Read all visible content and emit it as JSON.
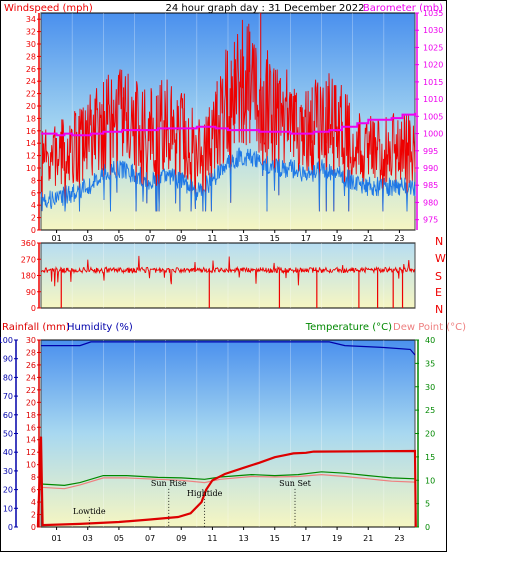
{
  "header": {
    "left_label": "Windspeed (mph)",
    "center_label": "24 hour graph day : 31 December 2022",
    "right_label": "Barometer (mb)"
  },
  "colors": {
    "wind_gust": "#ee0000",
    "wind_avg": "#1e78e6",
    "barometer": "#ee00ee",
    "humidity": "#0000aa",
    "rainfall": "#dd0000",
    "temperature": "#008800",
    "dew_point": "#ee8080",
    "frame": "#000000"
  },
  "chart_data": [
    {
      "type": "line",
      "name": "wind-barometer",
      "left_axis": {
        "label": "Windspeed (mph)",
        "ylim": [
          0,
          35
        ],
        "ticks": [
          0,
          2,
          4,
          6,
          8,
          10,
          12,
          14,
          16,
          18,
          20,
          22,
          24,
          26,
          28,
          30,
          32,
          34
        ]
      },
      "right_axis": {
        "label": "Barometer (mb)",
        "ylim": [
          972,
          1035
        ],
        "ticks": [
          975,
          980,
          985,
          990,
          995,
          1000,
          1005,
          1010,
          1015,
          1020,
          1025,
          1030,
          1035
        ]
      },
      "x_ticks": [
        "01",
        "03",
        "05",
        "07",
        "09",
        "11",
        "13",
        "15",
        "17",
        "19",
        "21",
        "23"
      ],
      "barometer_steps": [
        [
          0,
          1000
        ],
        [
          1.0,
          999.5
        ],
        [
          1.5,
          1000
        ],
        [
          2.0,
          999.5
        ],
        [
          3.2,
          1000
        ],
        [
          4.0,
          1000.5
        ],
        [
          5.2,
          1001
        ],
        [
          7.5,
          1001.5
        ],
        [
          10.0,
          1002
        ],
        [
          11.2,
          1001.5
        ],
        [
          12.0,
          1001
        ],
        [
          14.0,
          1000.5
        ],
        [
          16.0,
          1000
        ],
        [
          17.5,
          1000.5
        ],
        [
          18.5,
          1001
        ],
        [
          19.3,
          1002
        ],
        [
          20.3,
          1003
        ],
        [
          21.0,
          1004
        ],
        [
          22.5,
          1004.5
        ],
        [
          23.2,
          1005.5
        ],
        [
          24.0,
          1006
        ]
      ],
      "wind_profile": [
        [
          0,
          5,
          11
        ],
        [
          1,
          5,
          12
        ],
        [
          2,
          6,
          13
        ],
        [
          3,
          7,
          15
        ],
        [
          4,
          9,
          17
        ],
        [
          5,
          10,
          18
        ],
        [
          6,
          9,
          17
        ],
        [
          7,
          8,
          16
        ],
        [
          8,
          9,
          17
        ],
        [
          9,
          8,
          16
        ],
        [
          10,
          6,
          13
        ],
        [
          11,
          8,
          15
        ],
        [
          12,
          11,
          21
        ],
        [
          13,
          12,
          24
        ],
        [
          14,
          11,
          22
        ],
        [
          15,
          10,
          19
        ],
        [
          16,
          10,
          18
        ],
        [
          17,
          9,
          16
        ],
        [
          18,
          10,
          18
        ],
        [
          19,
          9,
          17
        ],
        [
          20,
          8,
          14
        ],
        [
          21,
          7,
          13
        ],
        [
          22,
          7,
          13
        ],
        [
          23,
          7,
          13
        ],
        [
          24,
          7,
          14
        ]
      ],
      "wind_spikes": [
        [
          12.4,
          26
        ],
        [
          13.4,
          32
        ],
        [
          14.1,
          35
        ],
        [
          13.0,
          28
        ],
        [
          11.3,
          24
        ],
        [
          5.3,
          23
        ],
        [
          17.4,
          23
        ],
        [
          18.3,
          24
        ],
        [
          9.2,
          22
        ]
      ]
    },
    {
      "type": "line",
      "name": "wind-direction",
      "y_ticks": [
        0,
        90,
        180,
        270,
        360
      ],
      "ylim": [
        0,
        360
      ],
      "compass_labels": [
        "N",
        "W",
        "S",
        "E",
        "N"
      ],
      "typical_direction": 210,
      "drops": [
        1.3,
        10.8,
        15.3,
        17.7,
        20.4,
        21.6,
        22.6,
        23.2
      ]
    },
    {
      "type": "line",
      "name": "rain-humidity-temperature",
      "labels": {
        "rainfall": "Rainfall (mm)",
        "humidity": "Humidity (%)",
        "temperature": "Temperature (°C)",
        "dew_point": "Dew Point (°C)"
      },
      "humidity_axis": {
        "ylim": [
          0,
          100
        ],
        "ticks": [
          0,
          10,
          20,
          30,
          40,
          50,
          60,
          70,
          80,
          90,
          100
        ]
      },
      "rain_axis": {
        "ylim": [
          0,
          30
        ],
        "ticks": [
          0,
          2,
          4,
          6,
          8,
          10,
          12,
          14,
          16,
          18,
          20,
          22,
          24,
          26,
          28,
          30
        ]
      },
      "temp_axis": {
        "ylim": [
          0,
          40
        ],
        "ticks": [
          0,
          5,
          10,
          15,
          20,
          25,
          30,
          35,
          40
        ]
      },
      "humidity": [
        [
          0,
          97
        ],
        [
          2.5,
          97
        ],
        [
          3.2,
          99
        ],
        [
          18.5,
          99
        ],
        [
          19.5,
          97
        ],
        [
          22.0,
          96
        ],
        [
          23.7,
          95
        ],
        [
          24.0,
          92
        ]
      ],
      "rainfall": [
        [
          -0.2,
          0
        ],
        [
          0,
          14.5
        ],
        [
          0.1,
          0.3
        ],
        [
          2.5,
          0.5
        ],
        [
          5.0,
          0.8
        ],
        [
          7.0,
          1.2
        ],
        [
          8.8,
          1.6
        ],
        [
          9.6,
          2.2
        ],
        [
          10.3,
          4.0
        ],
        [
          10.6,
          6.0
        ],
        [
          11.0,
          7.5
        ],
        [
          11.8,
          8.5
        ],
        [
          13.0,
          9.5
        ],
        [
          14.0,
          10.3
        ],
        [
          15.0,
          11.2
        ],
        [
          15.8,
          11.6
        ],
        [
          16.2,
          11.8
        ],
        [
          17.0,
          11.9
        ],
        [
          17.5,
          12.1
        ],
        [
          24.0,
          12.2
        ],
        [
          24.05,
          0
        ]
      ],
      "temperature": [
        [
          0,
          9.2
        ],
        [
          1.5,
          8.9
        ],
        [
          2.5,
          9.5
        ],
        [
          4.0,
          11.0
        ],
        [
          5.5,
          11.0
        ],
        [
          7.5,
          10.6
        ],
        [
          9.0,
          10.5
        ],
        [
          10.5,
          10.2
        ],
        [
          11.5,
          10.7
        ],
        [
          13.5,
          11.2
        ],
        [
          15.0,
          11.0
        ],
        [
          16.5,
          11.2
        ],
        [
          18.0,
          11.8
        ],
        [
          19.5,
          11.5
        ],
        [
          21.0,
          11.0
        ],
        [
          22.5,
          10.5
        ],
        [
          24.0,
          10.3
        ]
      ],
      "dew_point": [
        [
          0,
          8.5
        ],
        [
          1.5,
          8.2
        ],
        [
          2.5,
          9.0
        ],
        [
          4.0,
          10.5
        ],
        [
          5.5,
          10.5
        ],
        [
          7.5,
          10.2
        ],
        [
          9.0,
          10.0
        ],
        [
          10.5,
          9.5
        ],
        [
          11.5,
          10.2
        ],
        [
          13.5,
          10.8
        ],
        [
          15.0,
          10.7
        ],
        [
          16.5,
          10.8
        ],
        [
          18.0,
          11.2
        ],
        [
          19.5,
          10.8
        ],
        [
          21.0,
          10.3
        ],
        [
          22.5,
          9.8
        ],
        [
          24.0,
          9.6
        ]
      ],
      "annotations": [
        {
          "label": "Lowtide",
          "time": 3.1,
          "level": 2.1
        },
        {
          "label": "Sun Rise",
          "time": 8.2,
          "level": 6.6
        },
        {
          "label": "Hightide",
          "time": 10.5,
          "level": 5.0
        },
        {
          "label": "Sun Set",
          "time": 16.3,
          "level": 6.6
        }
      ]
    }
  ]
}
